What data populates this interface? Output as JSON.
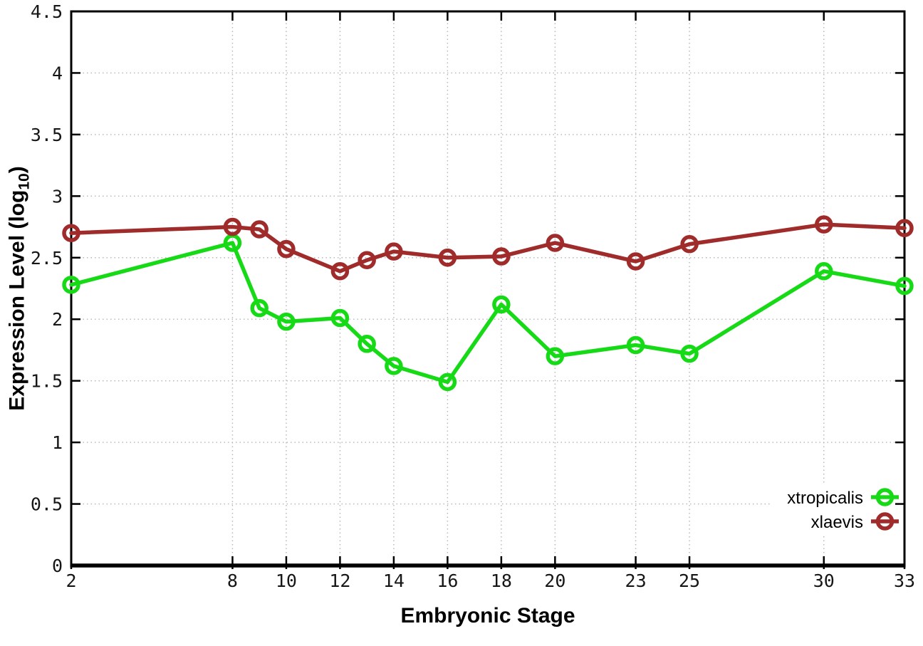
{
  "page": {
    "background": "#ffffff"
  },
  "chart_data": {
    "type": "line",
    "title": "",
    "xlabel": "Embryonic Stage",
    "ylabel": "Expression Level (log10)",
    "ylabel_parts": {
      "pre": "Expression Level (log",
      "sub": "10",
      "post": ")"
    },
    "x": [
      2,
      8,
      9,
      10,
      12,
      13,
      14,
      16,
      18,
      20,
      23,
      25,
      30,
      33
    ],
    "series": [
      {
        "name": "xtropicalis",
        "color": "#17da17",
        "values": [
          2.28,
          2.62,
          2.09,
          1.98,
          2.01,
          1.8,
          1.62,
          1.49,
          2.12,
          1.7,
          1.79,
          1.72,
          2.39,
          2.27
        ]
      },
      {
        "name": "xlaevis",
        "color": "#a02b2b",
        "values": [
          2.7,
          2.75,
          2.73,
          2.57,
          2.39,
          2.48,
          2.55,
          2.5,
          2.51,
          2.62,
          2.47,
          2.61,
          2.77,
          2.74
        ]
      }
    ],
    "xlim": [
      2,
      33
    ],
    "ylim": [
      0,
      4.5
    ],
    "xticks": [
      2,
      8,
      10,
      12,
      14,
      16,
      18,
      20,
      23,
      25,
      30,
      33
    ],
    "xtick_labels": [
      "2",
      "8",
      "10",
      "12",
      "14",
      "16",
      "18",
      "20",
      "23",
      "25",
      "30",
      "33"
    ],
    "yticks": [
      0,
      0.5,
      1,
      1.5,
      2,
      2.5,
      3,
      3.5,
      4,
      4.5
    ],
    "ytick_labels": [
      "0",
      "0.5",
      "1",
      "1.5",
      "2",
      "2.5",
      "3",
      "3.5",
      "4",
      "4.5"
    ],
    "grid": "dotted",
    "grid_color": "#b5b5b5",
    "axis_color": "#000000",
    "legend": {
      "position": "inside-bottom-right",
      "entries": [
        "xtropicalis",
        "xlaevis"
      ]
    }
  }
}
